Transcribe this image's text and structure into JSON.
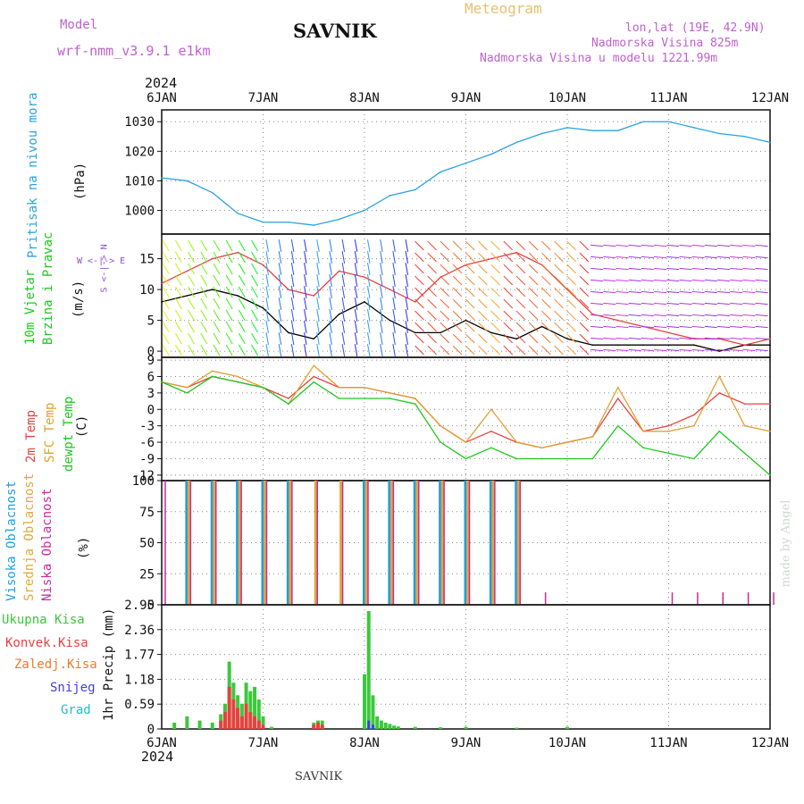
{
  "header": {
    "model_label": "Model",
    "model_value": "wrf-nmm_v3.9.1 e1km",
    "station": "SAVNIK",
    "product": "Meteogram",
    "lonlat": "lon,lat (19E, 42.9N)",
    "altitude": "Nadmorska Visina 825m",
    "model_altitude": "Nadmorska Visina u modelu 1221.99m",
    "year_top": "2024",
    "year_bottom": "2024",
    "footer_station": "SAVNIK",
    "credit": "made by Angel"
  },
  "colors": {
    "pressure": "#2aa3e0",
    "temp2m": "#e84040",
    "sfc": "#e0a030",
    "dew": "#1ec81e",
    "high_cloud": "#1e9ee8",
    "mid_cloud": "#e0a83a",
    "low_cloud": "#cc2a9a",
    "total_precip": "#3cc83c",
    "conv_precip": "#e84040",
    "frozen_precip": "#ee7a30",
    "snow": "#4040e0",
    "graupel": "#20c0c0",
    "wind_speed": "#000000",
    "gust": "#e84040"
  },
  "time_axis": {
    "labels": [
      "6JAN",
      "7JAN",
      "8JAN",
      "9JAN",
      "10JAN",
      "11JAN",
      "12JAN"
    ]
  },
  "panels": {
    "pressure": {
      "ylabel_title": "Pritisak na nivou mora",
      "ylabel_unit": "(hPa)"
    },
    "wind": {
      "ylabel_title1": "10m Vjetar",
      "ylabel_title2": "Brzina i Pravac",
      "ylabel_unit": "(m/s)",
      "compass": "W <-|-> E",
      "compass_v": "S <-|-> N"
    },
    "temp": {
      "ylabel_1": "2m Temp",
      "ylabel_2": "SFC Temp",
      "ylabel_3": "dewpt Temp",
      "ylabel_unit": "(C)"
    },
    "cloud": {
      "ylabel_1": "Visoka Oblacnost",
      "ylabel_2": "Srednja Oblacnost",
      "ylabel_3": "Niska Oblacnost",
      "ylabel_unit": "(%)"
    },
    "precip": {
      "ylabel_title": "1hr Precip (mm)",
      "legend": [
        "Ukupna Kisa",
        "Konvek.Kisa",
        "Zaledj.Kisa",
        "Snijeg",
        "Grad"
      ]
    }
  },
  "chart_data": [
    {
      "type": "line",
      "title": "Pritisak na nivou mora",
      "ylabel": "(hPa)",
      "x_unit": "hours from 6JAN 00UTC",
      "yticks": [
        1000,
        1010,
        1020,
        1030
      ],
      "ylim": [
        992,
        1034
      ],
      "x": [
        0,
        6,
        12,
        18,
        24,
        30,
        36,
        42,
        48,
        54,
        60,
        66,
        72,
        78,
        84,
        90,
        96,
        102,
        108,
        114,
        120,
        126,
        132,
        138,
        144
      ],
      "values": [
        1011,
        1010,
        1006,
        999,
        996,
        996,
        995,
        997,
        1000,
        1005,
        1007,
        1013,
        1016,
        1019,
        1023,
        1026,
        1028,
        1027,
        1027,
        1030,
        1030,
        1028,
        1026,
        1025,
        1023
      ]
    },
    {
      "type": "line",
      "title": "10m Vjetar Brzina i Pravac",
      "ylabel": "(m/s)",
      "yticks": [
        0,
        5,
        10,
        15
      ],
      "ylim": [
        -1,
        19
      ],
      "x": [
        0,
        6,
        12,
        18,
        24,
        30,
        36,
        42,
        48,
        54,
        60,
        66,
        72,
        78,
        84,
        90,
        96,
        102,
        108,
        114,
        120,
        126,
        132,
        138,
        144
      ],
      "series": [
        {
          "name": "speed",
          "values": [
            8,
            9,
            10,
            9,
            7,
            3,
            2,
            6,
            8,
            5,
            3,
            3,
            5,
            3,
            2,
            4,
            2,
            1,
            1,
            1,
            1,
            1,
            0,
            1,
            1
          ]
        },
        {
          "name": "gust",
          "values": [
            11,
            13,
            15,
            16,
            14,
            10,
            9,
            13,
            12,
            10,
            8,
            12,
            14,
            15,
            16,
            14,
            10,
            6,
            5,
            4,
            3,
            2,
            2,
            1,
            2
          ]
        }
      ]
    },
    {
      "type": "line",
      "title": "Temperatura",
      "ylabel": "(C)",
      "yticks": [
        -12,
        -9,
        -6,
        -3,
        0,
        3,
        6,
        9
      ],
      "ylim": [
        -13,
        9.5
      ],
      "x": [
        0,
        6,
        12,
        18,
        24,
        30,
        36,
        42,
        48,
        54,
        60,
        66,
        72,
        78,
        84,
        90,
        96,
        102,
        108,
        114,
        120,
        126,
        132,
        138,
        144
      ],
      "series": [
        {
          "name": "2m Temp",
          "values": [
            5,
            4,
            6,
            5,
            4,
            2,
            6,
            4,
            4,
            3,
            2,
            -3,
            -6,
            -4,
            -6,
            -7,
            -6,
            -5,
            2,
            -4,
            -3,
            -1,
            3,
            1,
            1
          ]
        },
        {
          "name": "SFC Temp",
          "values": [
            5,
            4,
            7,
            6,
            4,
            1,
            8,
            4,
            4,
            3,
            2,
            -3,
            -6,
            0,
            -6,
            -7,
            -6,
            -5,
            4,
            -4,
            -4,
            -3,
            6,
            -3,
            -4
          ]
        },
        {
          "name": "dewpt Temp",
          "values": [
            5,
            3,
            6,
            5,
            4,
            1,
            5,
            2,
            2,
            2,
            1,
            -6,
            -9,
            -7,
            -9,
            -9,
            -9,
            -9,
            -3,
            -7,
            -8,
            -9,
            -4,
            -8,
            -12
          ]
        }
      ]
    },
    {
      "type": "bar",
      "title": "Oblacnost",
      "ylabel": "(%)",
      "yticks": [
        0,
        25,
        50,
        75,
        100
      ],
      "ylim": [
        0,
        100
      ],
      "x": [
        0,
        6,
        12,
        18,
        24,
        30,
        36,
        42,
        48,
        54,
        60,
        66,
        72,
        78,
        84,
        90,
        96,
        102,
        108,
        114,
        120,
        126,
        132,
        138,
        144
      ],
      "series": [
        {
          "name": "Visoka Oblacnost",
          "values": [
            0,
            100,
            100,
            100,
            100,
            100,
            0,
            0,
            100,
            100,
            100,
            100,
            100,
            100,
            100,
            0,
            0,
            0,
            0,
            0,
            0,
            0,
            0,
            0,
            0
          ]
        },
        {
          "name": "Srednja Oblacnost",
          "values": [
            0,
            100,
            100,
            100,
            100,
            100,
            100,
            100,
            100,
            100,
            100,
            100,
            100,
            100,
            100,
            0,
            0,
            0,
            0,
            0,
            0,
            0,
            0,
            0,
            0
          ]
        },
        {
          "name": "Niska Oblacnost",
          "values": [
            100,
            100,
            100,
            100,
            100,
            100,
            100,
            100,
            100,
            100,
            100,
            100,
            100,
            100,
            100,
            10,
            0,
            0,
            0,
            0,
            10,
            10,
            10,
            10,
            10
          ]
        }
      ]
    },
    {
      "type": "bar",
      "title": "1hr Precip",
      "ylabel": "(mm)",
      "yticks": [
        0,
        0.59,
        1.18,
        1.77,
        2.36,
        2.95
      ],
      "ylim": [
        0,
        2.95
      ],
      "x": [
        3,
        6,
        9,
        12,
        14,
        15,
        16,
        17,
        18,
        19,
        20,
        21,
        22,
        23,
        24,
        26,
        36,
        37,
        38,
        48,
        49,
        50,
        51,
        52,
        53,
        54,
        55,
        56,
        60,
        66,
        72,
        84,
        96
      ],
      "series": [
        {
          "name": "Ukupna Kisa",
          "values": [
            0.15,
            0.3,
            0.2,
            0.15,
            0.35,
            0.6,
            1.6,
            1.1,
            0.8,
            0.6,
            1.1,
            0.9,
            1.0,
            0.7,
            0.3,
            0.05,
            0.15,
            0.2,
            0.2,
            1.3,
            2.8,
            0.8,
            0.3,
            0.2,
            0.15,
            0.12,
            0.08,
            0.06,
            0.05,
            0.04,
            0.05,
            0.03,
            0.05
          ]
        },
        {
          "name": "Konvek.Kisa",
          "values": [
            0,
            0,
            0,
            0,
            0.2,
            0.4,
            1.0,
            0.7,
            0.5,
            0.3,
            0.6,
            0.4,
            0.3,
            0.2,
            0.1,
            0,
            0.1,
            0.15,
            0.1,
            0,
            0,
            0,
            0,
            0,
            0,
            0,
            0,
            0,
            0,
            0,
            0,
            0,
            0
          ]
        },
        {
          "name": "Snijeg",
          "values": [
            0,
            0,
            0,
            0,
            0,
            0,
            0,
            0,
            0,
            0,
            0,
            0,
            0,
            0,
            0,
            0,
            0,
            0,
            0,
            0,
            0.2,
            0.1,
            0,
            0,
            0,
            0,
            0,
            0,
            0,
            0,
            0,
            0,
            0
          ]
        }
      ]
    }
  ]
}
